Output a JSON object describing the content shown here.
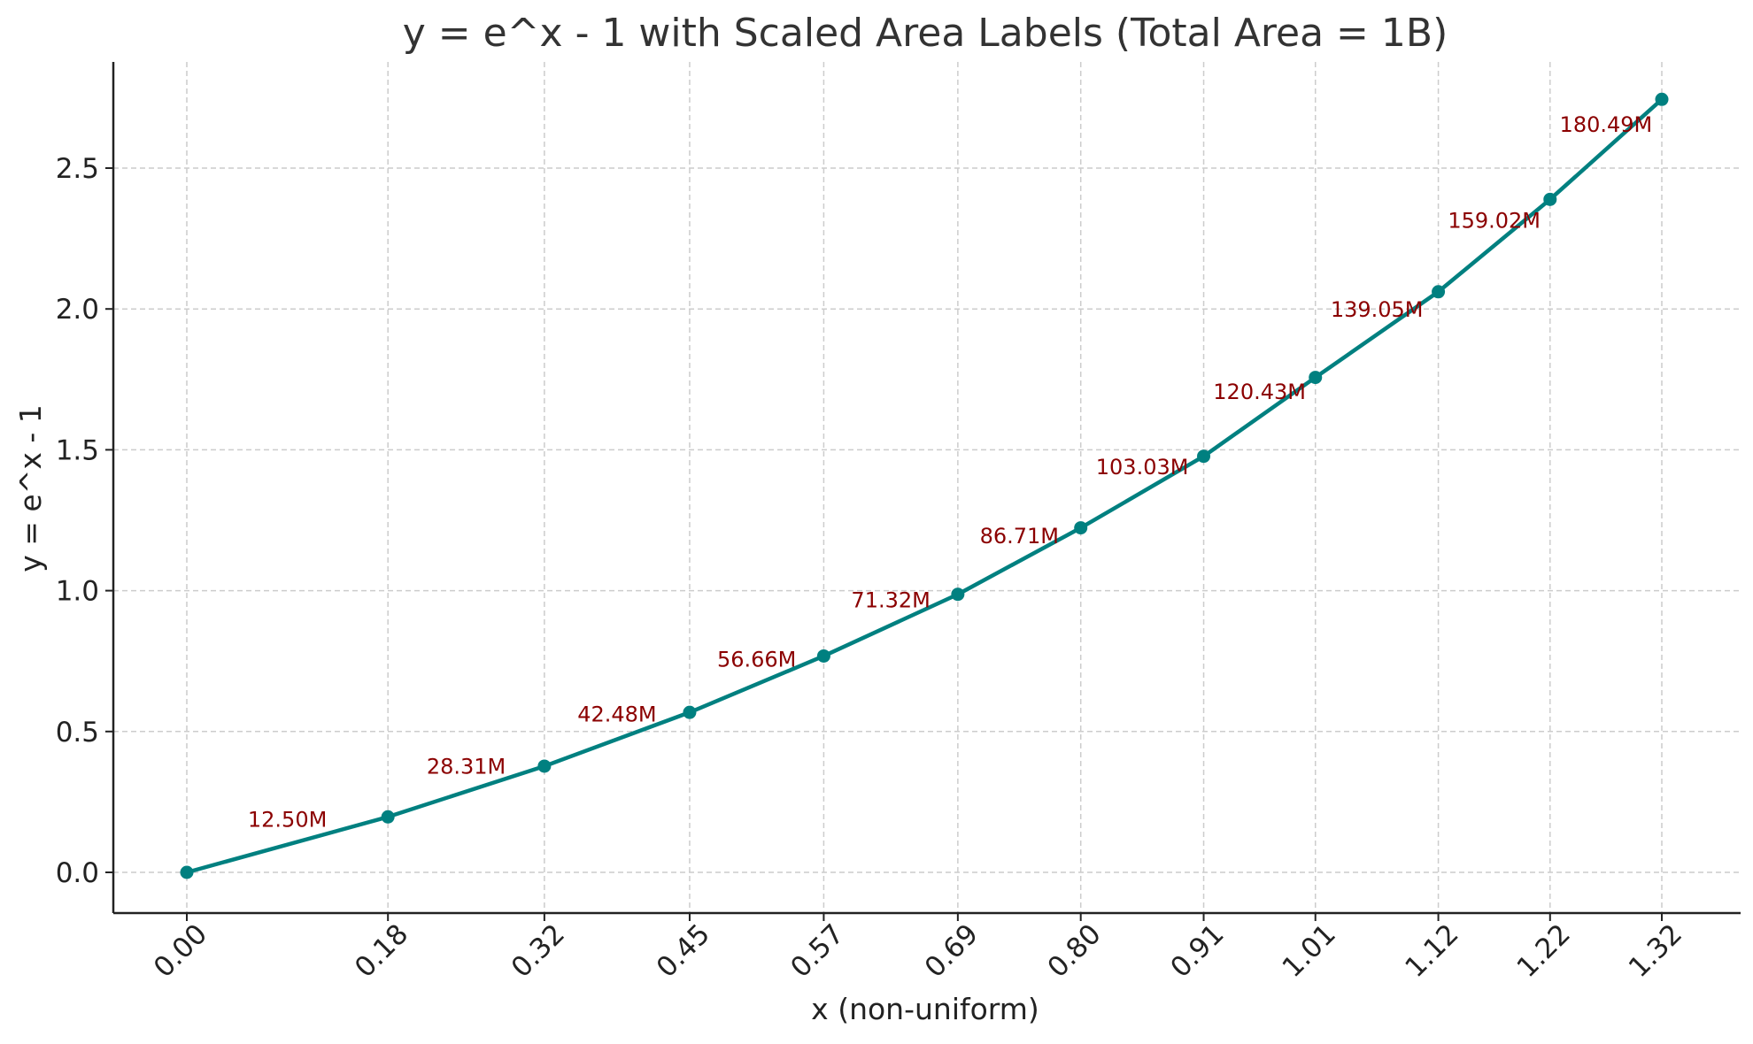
{
  "chart_data": {
    "type": "line",
    "title": "y = e^x - 1 with Scaled Area Labels (Total Area = 1B)",
    "xlabel": "x (non-uniform)",
    "ylabel": "y = e^x - 1",
    "xlim": [
      -0.08,
      1.36
    ],
    "ylim": [
      -0.14,
      2.89
    ],
    "grid": true,
    "x_tick_labels": [
      "0.00",
      "0.18",
      "0.32",
      "0.45",
      "0.57",
      "0.69",
      "0.80",
      "0.91",
      "1.01",
      "1.12",
      "1.22",
      "1.32"
    ],
    "y_ticks": [
      0.0,
      0.5,
      1.0,
      1.5,
      2.0,
      2.5
    ],
    "y_tick_labels": [
      "0.0",
      "0.5",
      "1.0",
      "1.5",
      "2.0",
      "2.5"
    ],
    "series": [
      {
        "color": "#008080",
        "x": [
          0.0,
          0.18,
          0.32,
          0.45,
          0.57,
          0.69,
          0.8,
          0.91,
          1.01,
          1.12,
          1.22,
          1.32
        ],
        "y": [
          0.0,
          0.197,
          0.377,
          0.568,
          0.768,
          0.987,
          1.223,
          1.477,
          1.757,
          2.061,
          2.389,
          2.744
        ]
      }
    ],
    "area_labels": [
      "12.50M",
      "28.31M",
      "42.48M",
      "56.66M",
      "71.32M",
      "86.71M",
      "103.03M",
      "120.43M",
      "139.05M",
      "159.02M",
      "180.49M"
    ],
    "area_label_color": "#8b0000"
  }
}
